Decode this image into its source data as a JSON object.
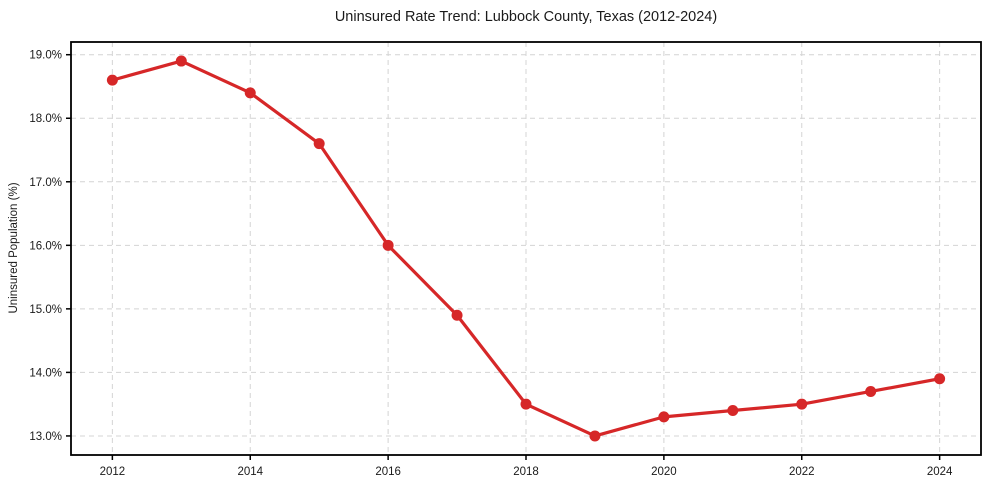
{
  "page": {
    "background_color": "#ffffff"
  },
  "chart_data": {
    "type": "line",
    "title": "Uninsured Rate Trend: Lubbock County, Texas (2012-2024)",
    "xlabel": "",
    "ylabel": "Uninsured Population (%)",
    "x": [
      2012,
      2013,
      2014,
      2015,
      2016,
      2017,
      2018,
      2019,
      2020,
      2021,
      2022,
      2023,
      2024
    ],
    "values": [
      18.6,
      18.9,
      18.4,
      17.6,
      16.0,
      14.9,
      13.5,
      13.0,
      13.3,
      13.4,
      13.5,
      13.7,
      13.9
    ],
    "x_tick_values": [
      2012,
      2014,
      2016,
      2018,
      2020,
      2022,
      2024
    ],
    "x_tick_labels": [
      "2012",
      "2014",
      "2016",
      "2018",
      "2020",
      "2022",
      "2024"
    ],
    "y_tick_values": [
      13,
      14,
      15,
      16,
      17,
      18,
      19
    ],
    "y_tick_labels": [
      "13.0%",
      "14.0%",
      "15.0%",
      "16.0%",
      "17.0%",
      "18.0%",
      "19.0%"
    ],
    "xlim": [
      2011.4,
      2024.6
    ],
    "ylim": [
      12.7,
      19.2
    ],
    "grid": true,
    "grid_style": "dashed",
    "legend": false,
    "line_color": "#d62728",
    "marker": "circle",
    "grid_color": "#d4d4d4",
    "spine_color": "#000000",
    "text_color": "#1a1a1a"
  }
}
